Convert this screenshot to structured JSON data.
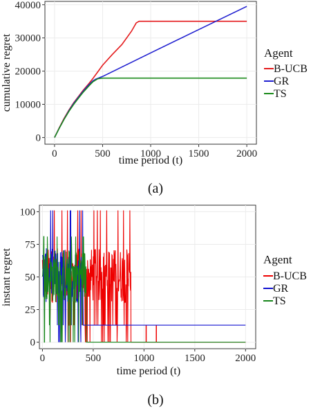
{
  "chart_data": [
    {
      "type": "line",
      "xlabel": "time period (t)",
      "ylabel": "cumulative regret",
      "xlim": [
        -100,
        2100
      ],
      "ylim": [
        -2000,
        41000
      ],
      "xticks": [
        0,
        500,
        1000,
        1500,
        2000
      ],
      "yticks": [
        0,
        10000,
        20000,
        30000,
        40000
      ],
      "grid": true,
      "legend": {
        "title": "Agent",
        "placement": "right"
      },
      "caption": "(a)",
      "series": [
        {
          "name": "B-UCB",
          "color": "#e41a1c",
          "x": [
            0,
            50,
            100,
            150,
            200,
            250,
            300,
            350,
            400,
            450,
            500,
            600,
            700,
            800,
            850,
            880,
            1000,
            1500,
            2000
          ],
          "y": [
            0,
            3000,
            5800,
            8300,
            10500,
            12400,
            14300,
            16000,
            17800,
            19800,
            21800,
            25000,
            28000,
            32000,
            34500,
            35000,
            35000,
            35000,
            35000
          ]
        },
        {
          "name": "GR",
          "color": "#1f1fd0",
          "x": [
            0,
            50,
            100,
            150,
            200,
            250,
            300,
            350,
            400,
            430,
            500,
            1000,
            1500,
            2000
          ],
          "y": [
            0,
            2900,
            5600,
            8100,
            10300,
            12200,
            14000,
            15700,
            17100,
            17600,
            18400,
            25500,
            32500,
            39500
          ]
        },
        {
          "name": "TS",
          "color": "#1a8a1a",
          "x": [
            0,
            50,
            100,
            150,
            200,
            250,
            300,
            350,
            400,
            450,
            500,
            1000,
            1500,
            2000
          ],
          "y": [
            0,
            2850,
            5500,
            7900,
            10000,
            11900,
            13700,
            15300,
            16800,
            17700,
            17900,
            17900,
            17900,
            17900
          ]
        }
      ]
    },
    {
      "type": "line",
      "xlabel": "time period (t)",
      "ylabel": "instant regret",
      "xlim": [
        -30,
        2100
      ],
      "ylim": [
        -5,
        105
      ],
      "xticks": [
        0,
        500,
        1000,
        1500,
        2000
      ],
      "yticks": [
        0,
        25,
        50,
        75,
        100
      ],
      "grid": true,
      "legend": {
        "title": "Agent",
        "placement": "right"
      },
      "caption": "(b)",
      "series": [
        {
          "name": "B-UCB",
          "color": "#ee0000",
          "noisy_until": 870,
          "tail_value": 0,
          "spikes_x": [
            1020,
            1120
          ],
          "spike_value": 13,
          "max": 101
        },
        {
          "name": "GR",
          "color": "#1010d0",
          "noisy_until": 400,
          "tail_value": 13,
          "spikes_x": [],
          "spike_value": 0,
          "max": 101
        },
        {
          "name": "TS",
          "color": "#16851a",
          "noisy_until": 430,
          "tail_value": 0,
          "spikes_x": [],
          "spike_value": 0,
          "max": 81
        }
      ]
    }
  ]
}
